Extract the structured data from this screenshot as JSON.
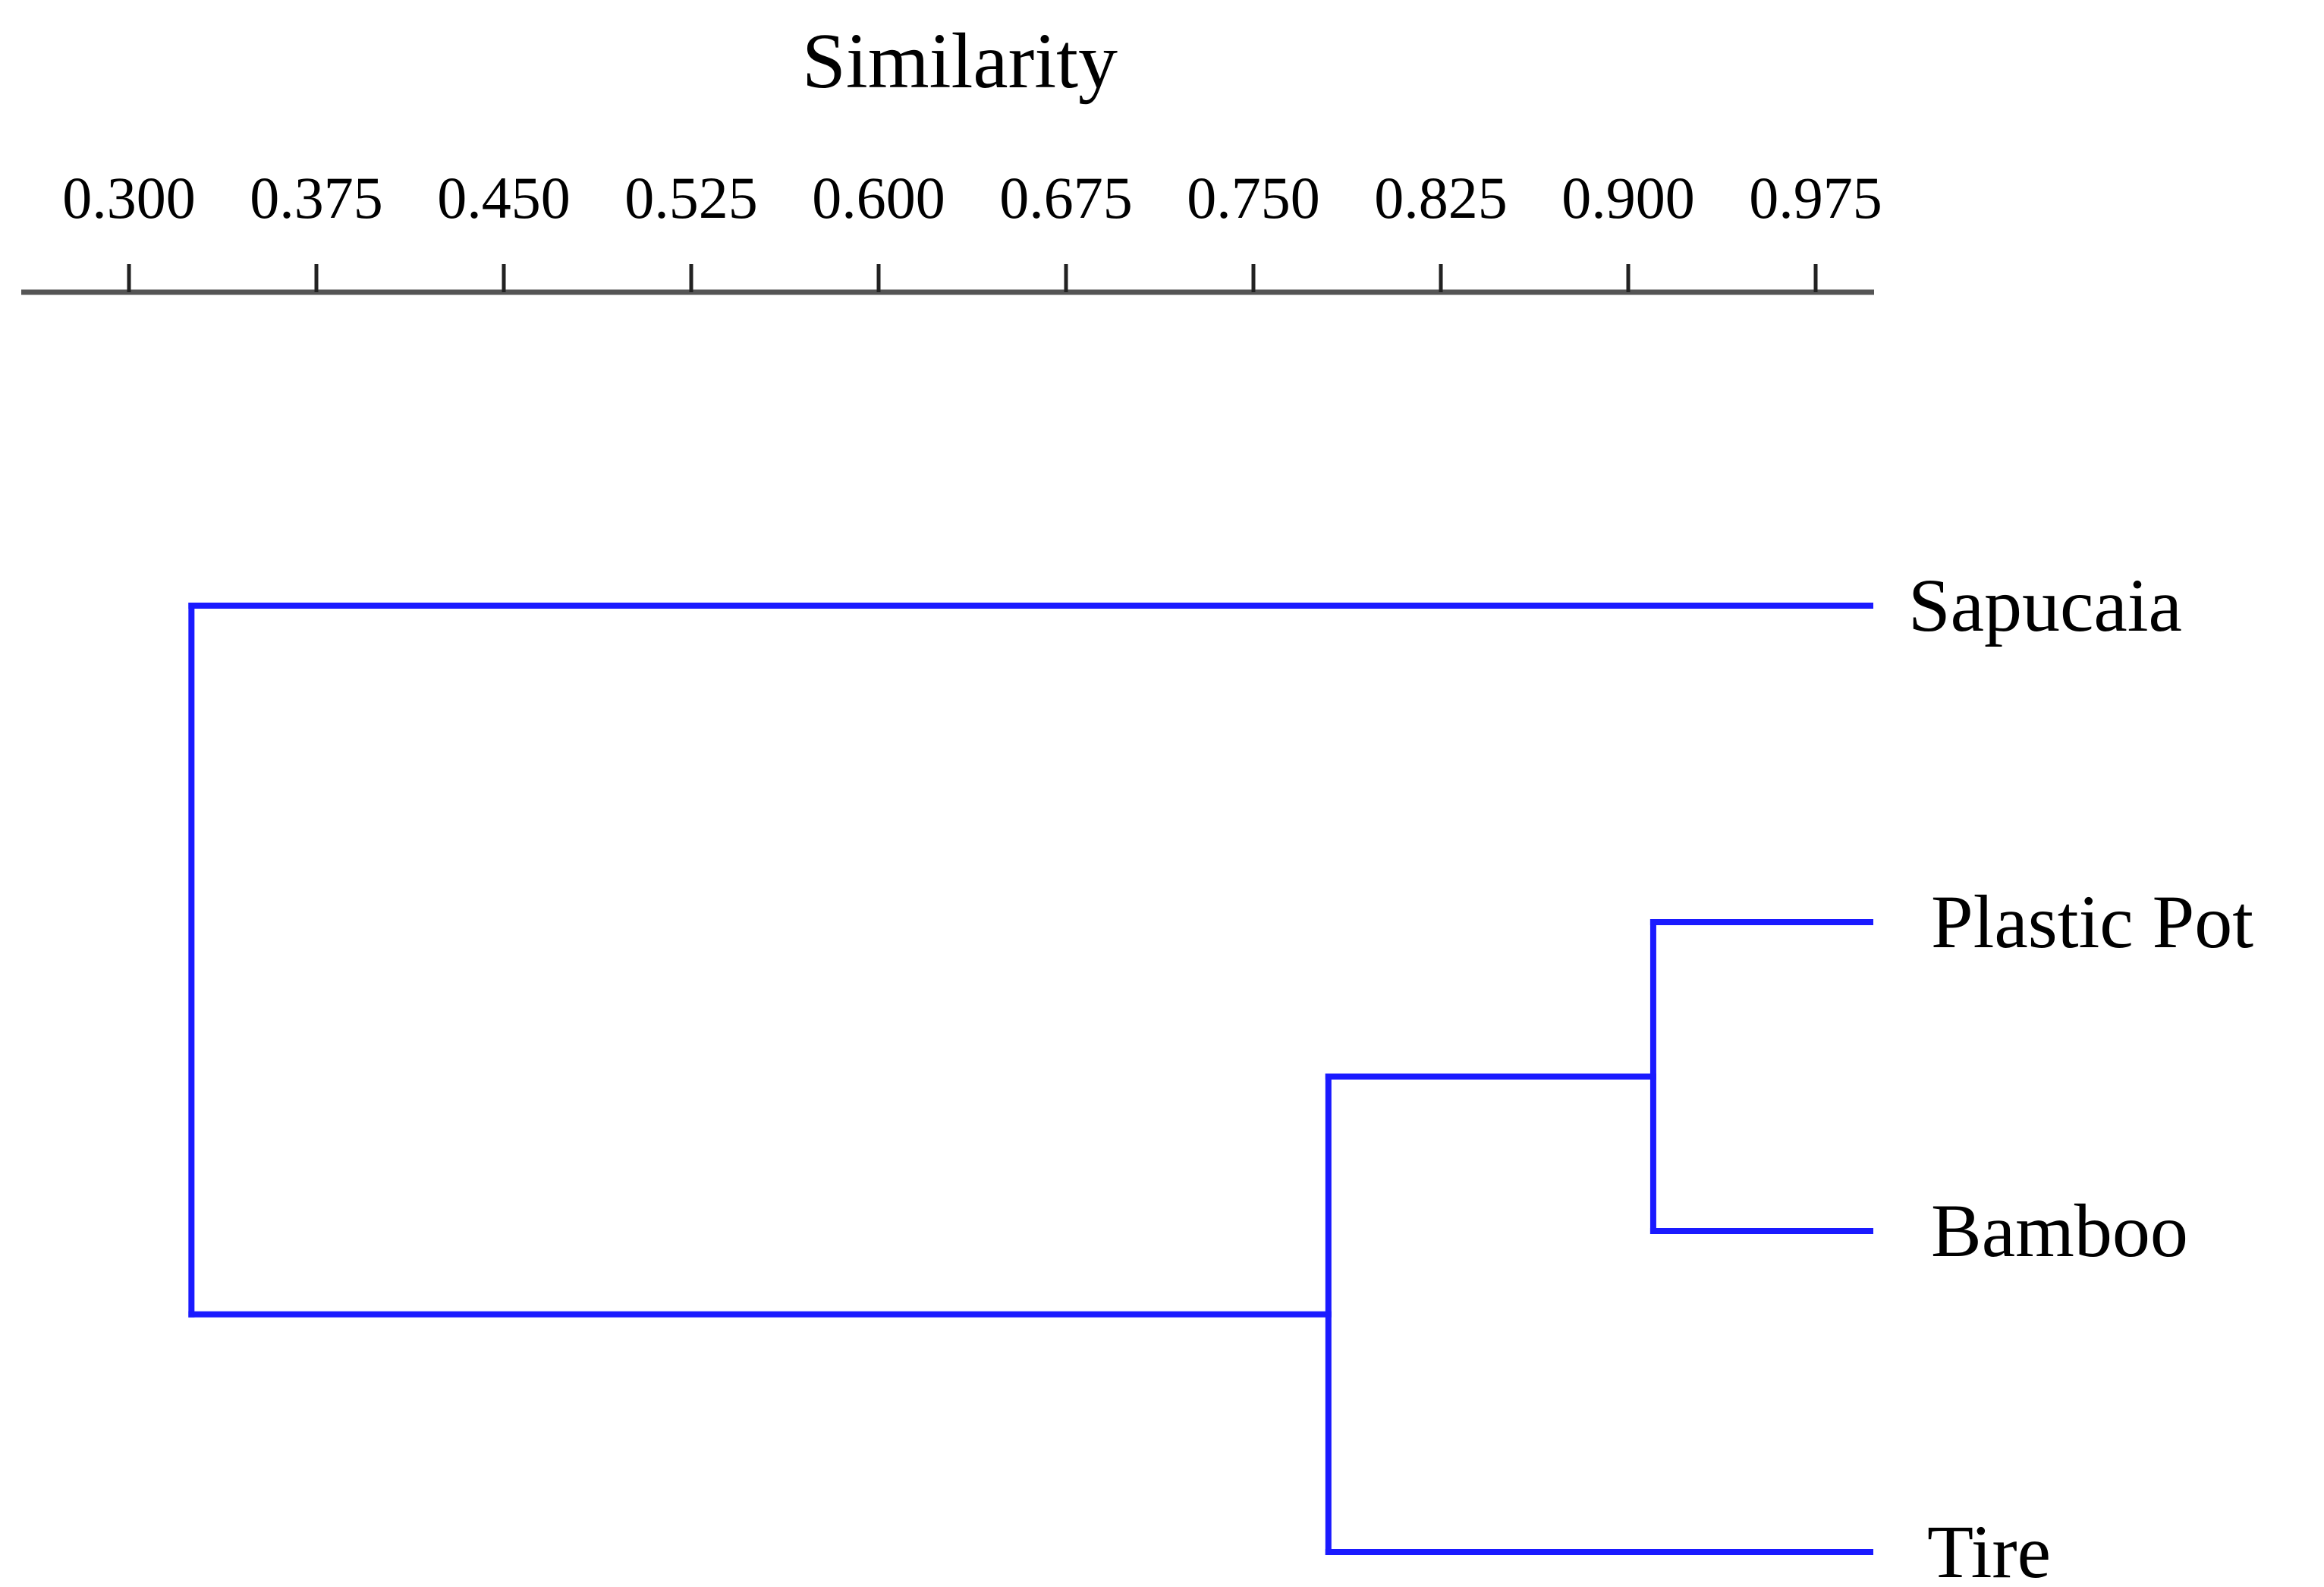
{
  "chart_data": {
    "type": "dendrogram",
    "xlabel": "Similarity",
    "x_ticks": [
      "0.300",
      "0.375",
      "0.450",
      "0.525",
      "0.600",
      "0.675",
      "0.750",
      "0.825",
      "0.900",
      "0.975"
    ],
    "xlim": [
      0.28,
      1.0
    ],
    "leaves": [
      "Sapucaia",
      "Plastic Pot",
      "Bamboo",
      "Tire"
    ],
    "merges": [
      {
        "members": [
          "Plastic Pot",
          "Bamboo"
        ],
        "similarity": 0.91
      },
      {
        "members": [
          "Plastic Pot",
          "Bamboo",
          "Tire"
        ],
        "similarity": 0.78
      },
      {
        "members": [
          "Sapucaia",
          "Plastic Pot",
          "Bamboo",
          "Tire"
        ],
        "similarity": 0.325
      }
    ],
    "branch_color": "#1a1aff",
    "axis_color": "#555555",
    "text_color": "#000000"
  }
}
